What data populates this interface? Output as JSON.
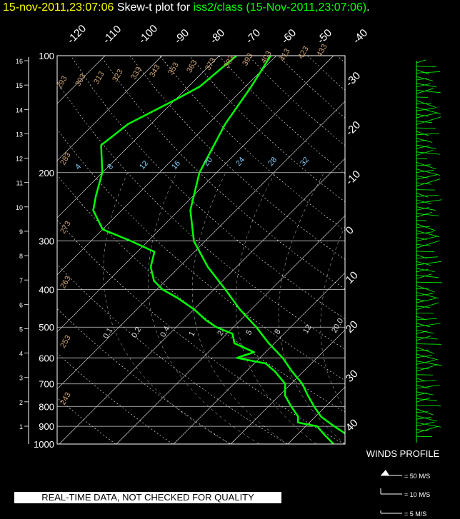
{
  "title": {
    "timestamp": "15-nov-2011,23:07:06",
    "text_before": "Skew-t plot for",
    "platform": "iss2/class",
    "text_after": "(15-Nov-2011,23:07:06)",
    "end": "."
  },
  "winds_profile_label": "WINDS PROFILE",
  "wind_legend": [
    "= 50 M/S",
    "= 10 M/S",
    "= 5 M/S"
  ],
  "disclaimer": "REAL-TIME DATA, NOT CHECKED FOR QUALITY",
  "colors": {
    "title_time": "#ffff00",
    "title_platform": "#00ff00",
    "trace": "#00ff00",
    "isotherm": "#ffffff",
    "dry_adiabat": "#c8a070",
    "mixing_ratio_label": "#87cefa"
  },
  "chart_data": {
    "type": "line",
    "subtype": "skew-t",
    "y_scale": "log",
    "ylabel_left": "Height (km)",
    "height_ticks_km": [
      "1",
      "2",
      "3",
      "4",
      "5",
      "6",
      "7",
      "8",
      "9",
      "10",
      "11",
      "12",
      "13",
      "14",
      "15",
      "16"
    ],
    "pressure_ticks_hpa": [
      "100",
      "200",
      "300",
      "400",
      "500",
      "600",
      "700",
      "800",
      "900",
      "1000"
    ],
    "top_temperature_labels_c": [
      "-120",
      "-110",
      "-100",
      "-90",
      "-80",
      "-70",
      "-60",
      "-50",
      "-40"
    ],
    "right_temperature_labels_c": [
      "-30",
      "-20",
      "-10",
      "0",
      "10",
      "20",
      "30",
      "40"
    ],
    "dry_adiabat_labels_k": [
      "293",
      "303",
      "313",
      "323",
      "333",
      "343",
      "353",
      "363",
      "373",
      "383",
      "393",
      "403",
      "413",
      "423",
      "433"
    ],
    "dry_adiabat_side_labels_k": [
      "283",
      "273",
      "263",
      "253",
      "243"
    ],
    "mixing_ratio_labels_upper": [
      "4",
      "8",
      "12",
      "16",
      "20",
      "24",
      "28",
      "32"
    ],
    "mixing_ratio_labels_lower": [
      "0.1",
      "0.2",
      "0.4",
      "1",
      "2",
      "5",
      "8",
      "12",
      "20.0"
    ],
    "series": [
      {
        "role": "temperature",
        "points": [
          [
            1000,
            12
          ],
          [
            950,
            9
          ],
          [
            900,
            5
          ],
          [
            850,
            1
          ],
          [
            800,
            -2
          ],
          [
            750,
            -5
          ],
          [
            700,
            -8
          ],
          [
            650,
            -12
          ],
          [
            600,
            -16
          ],
          [
            550,
            -21
          ],
          [
            500,
            -26
          ],
          [
            450,
            -32
          ],
          [
            400,
            -38
          ],
          [
            350,
            -45
          ],
          [
            300,
            -52
          ],
          [
            250,
            -58
          ],
          [
            200,
            -63
          ],
          [
            150,
            -67
          ],
          [
            120,
            -69
          ],
          [
            100,
            -71
          ]
        ]
      },
      {
        "role": "dewpoint",
        "points": [
          [
            1000,
            8
          ],
          [
            950,
            5
          ],
          [
            900,
            2
          ],
          [
            880,
            -2
          ],
          [
            850,
            -3
          ],
          [
            800,
            -6
          ],
          [
            750,
            -9
          ],
          [
            700,
            -11
          ],
          [
            650,
            -15
          ],
          [
            620,
            -18
          ],
          [
            600,
            -24
          ],
          [
            580,
            -22
          ],
          [
            550,
            -27
          ],
          [
            520,
            -29
          ],
          [
            500,
            -33
          ],
          [
            480,
            -36
          ],
          [
            450,
            -40
          ],
          [
            420,
            -45
          ],
          [
            400,
            -49
          ],
          [
            380,
            -52
          ],
          [
            350,
            -55
          ],
          [
            320,
            -57
          ],
          [
            300,
            -63
          ],
          [
            280,
            -70
          ],
          [
            250,
            -75
          ],
          [
            230,
            -77
          ],
          [
            200,
            -80
          ],
          [
            170,
            -85
          ],
          [
            150,
            -84
          ],
          [
            130,
            -80
          ],
          [
            120,
            -78
          ],
          [
            100,
            -77
          ]
        ]
      }
    ]
  }
}
